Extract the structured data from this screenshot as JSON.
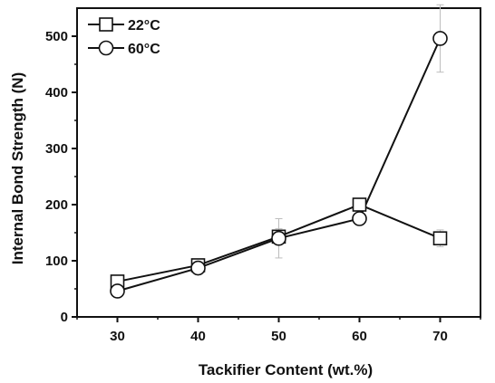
{
  "chart_data": {
    "type": "line",
    "xlabel": "Tackifier Content (wt.%)",
    "ylabel": "Internal Bond Strength (N)",
    "x": [
      30,
      40,
      50,
      60,
      70
    ],
    "xlim": [
      25,
      75
    ],
    "ylim": [
      0,
      550
    ],
    "xticks": [
      30,
      40,
      50,
      60,
      70
    ],
    "yticks": [
      0,
      100,
      200,
      300,
      400,
      500
    ],
    "grid": false,
    "legend_position": "top-left",
    "series": [
      {
        "name": "22°C",
        "marker": "square",
        "values": [
          63,
          92,
          143,
          200,
          140
        ],
        "errors": [
          8,
          8,
          14,
          10,
          15
        ]
      },
      {
        "name": "60°C",
        "marker": "circle",
        "values": [
          46,
          87,
          140,
          175,
          496
        ],
        "errors": [
          6,
          6,
          35,
          8,
          60
        ]
      }
    ]
  }
}
